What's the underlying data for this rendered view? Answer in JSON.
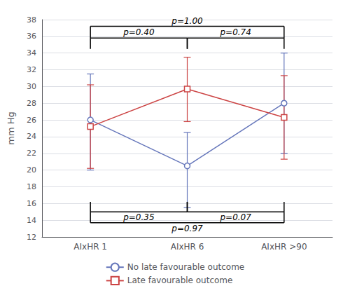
{
  "chart_data": {
    "type": "line",
    "categories": [
      "AIxHR 1",
      "AIxHR 6",
      "AIxHR >90"
    ],
    "ylabel": "mm Hg",
    "series": [
      {
        "name": "No late favourable outcome",
        "color": "#6677BB",
        "marker": "circle",
        "values": [
          26.0,
          20.5,
          28.0
        ],
        "ci_lower": [
          20.0,
          15.5,
          22.0
        ],
        "ci_upper": [
          31.5,
          24.5,
          34.0
        ]
      },
      {
        "name": "Late favourable outcome",
        "color": "#CC4444",
        "marker": "square",
        "values": [
          25.2,
          29.7,
          26.3
        ],
        "ci_lower": [
          20.2,
          25.8,
          21.3
        ],
        "ci_upper": [
          30.2,
          33.5,
          31.3
        ]
      }
    ],
    "ylim": [
      12,
      38
    ],
    "yticks": [
      12,
      14,
      16,
      18,
      20,
      22,
      24,
      26,
      28,
      30,
      32,
      34,
      36,
      38
    ],
    "grid": true,
    "legend": "bottom",
    "annotations": [
      {
        "text": "p=1.00",
        "from": "AIxHR 1",
        "to": "AIxHR >90",
        "y": 37.2,
        "y_end": 35.8
      },
      {
        "text": "p=0.40",
        "from": "AIxHR 1",
        "to": "AIxHR 6",
        "y": 35.8,
        "y_end": 34.5
      },
      {
        "text": "p=0.74",
        "from": "AIxHR 6",
        "to": "AIxHR >90",
        "y": 35.8,
        "y_end": 34.5
      },
      {
        "text": "p=0.97",
        "from": "AIxHR 1",
        "to": "AIxHR >90",
        "y": 13.7,
        "y_end": 15.0
      },
      {
        "text": "p=0.35",
        "from": "AIxHR 1",
        "to": "AIxHR 6",
        "y": 15.0,
        "y_end": 16.2
      },
      {
        "text": "p=0.07",
        "from": "AIxHR 6",
        "to": "AIxHR >90",
        "y": 15.0,
        "y_end": 16.2
      }
    ]
  }
}
